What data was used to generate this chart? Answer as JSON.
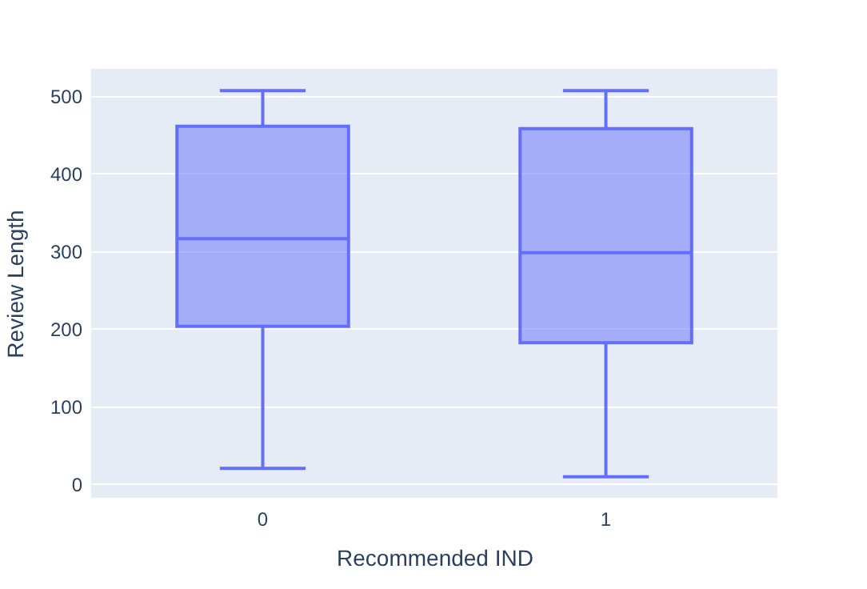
{
  "chart_data": {
    "type": "box",
    "xlabel": "Recommended IND",
    "ylabel": "Review Length",
    "categories": [
      "0",
      "1"
    ],
    "series": [
      {
        "color": "#636efa",
        "boxes": [
          {
            "low": 20,
            "q1": 203,
            "median": 316,
            "q3": 461,
            "high": 507
          },
          {
            "low": 9,
            "q1": 182,
            "median": 298,
            "q3": 458,
            "high": 507
          }
        ]
      }
    ],
    "ylim": [
      -18,
      535
    ],
    "yticks": [
      0,
      100,
      200,
      300,
      400,
      500
    ],
    "grid": "y"
  }
}
